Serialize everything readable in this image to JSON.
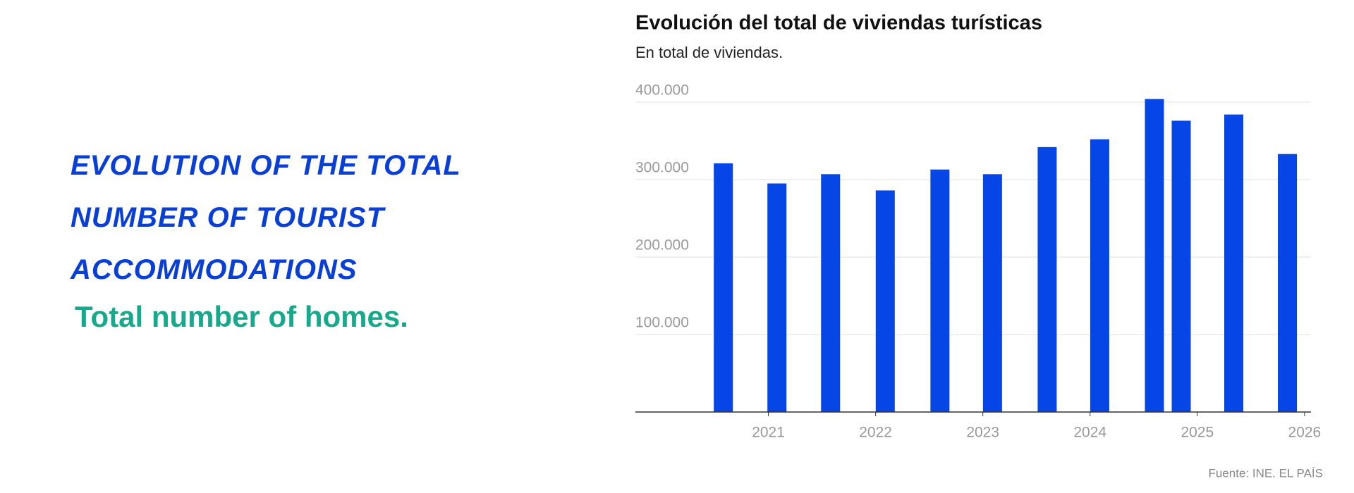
{
  "header": {
    "title": "EVOLUTION OF THE TOTAL NUMBER OF TOURIST ACCOMMODATIONS",
    "subtitle": "Total number of homes."
  },
  "chart_data": {
    "type": "bar",
    "title": "Evolución del total de viviendas turísticas",
    "subtitle": "En total de viviendas.",
    "source": "Fuente: INE. EL PAÍS",
    "x": [
      2020.58,
      2021.08,
      2021.58,
      2022.09,
      2022.6,
      2023.09,
      2023.6,
      2024.09,
      2024.6,
      2024.85,
      2025.34,
      2025.84
    ],
    "values": [
      321000,
      295000,
      307000,
      286000,
      313000,
      307000,
      342000,
      352000,
      404000,
      376000,
      384000,
      333000
    ],
    "color": "#0645e6",
    "xlim": [
      2019.76,
      2026.06
    ],
    "xticks": [
      2021,
      2022,
      2023,
      2024,
      2025,
      2026
    ],
    "ylim": [
      0,
      420000
    ],
    "yticks": [
      {
        "value": 100000,
        "label": "100.000"
      },
      {
        "value": 200000,
        "label": "200.000"
      },
      {
        "value": 300000,
        "label": "300.000"
      },
      {
        "value": 400000,
        "label": "400.000"
      }
    ],
    "grid": true
  }
}
